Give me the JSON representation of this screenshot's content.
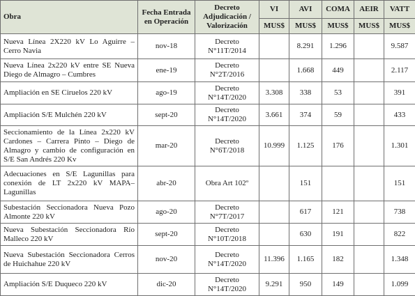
{
  "header": {
    "columns": [
      "Obra",
      "Fecha Entrada en Operación",
      "Decreto Adjudicación / Valorización",
      "VI",
      "AVI",
      "COMA",
      "AEIR",
      "VATT"
    ],
    "units": [
      "MUS$",
      "MUS$",
      "MUS$",
      "MUS$",
      "MUS$"
    ]
  },
  "table": {
    "rows": [
      [
        "Nueva Línea 2X220 kV Lo Aguirre – Cerro Navia",
        "nov-18",
        "Decreto N°11T/2014",
        null,
        "8.291",
        "1.296",
        null,
        "9.587"
      ],
      [
        "Nueva Línea 2x220 kV entre SE Nueva Diego de Almagro – Cumbres",
        "ene-19",
        "Decreto N°2T/2016",
        null,
        "1.668",
        "449",
        null,
        "2.117"
      ],
      [
        "Ampliación en SE Ciruelos 220 kV",
        "ago-19",
        "Decreto N°14T/2020",
        "3.308",
        "338",
        "53",
        null,
        "391"
      ],
      [
        "Ampliación S/E Mulchén 220 kV",
        "sept-20",
        "Decreto N°14T/2020",
        "3.661",
        "374",
        "59",
        null,
        "433"
      ],
      [
        "Seccionamiento de la Línea 2x220 kV Cardones – Carrera Pinto – Diego de Almagro y cambio de configuración en S/E San Andrés 220 Kv",
        "mar-20",
        "Decreto N°6T/2018",
        "10.999",
        "1.125",
        "176",
        null,
        "1.301"
      ],
      [
        "Adecuaciones en S/E Lagunillas para conexión de LT 2x220 kV MAPA–Lagunillas",
        "abr-20",
        "Obra Art 102º",
        null,
        "151",
        null,
        null,
        "151"
      ],
      [
        "Subestación Seccionadora Nueva Pozo Almonte 220 kV",
        "ago-20",
        "Decreto N°7T/2017",
        null,
        "617",
        "121",
        null,
        "738"
      ],
      [
        "Nueva Subestación Seccionadora Río Malleco 220 kV",
        "sept-20",
        "Decreto N°10T/2018",
        null,
        "630",
        "191",
        null,
        "822"
      ],
      [
        "Nueva Subestación Seccionadora Cerros de Huichahue 220 kV",
        "nov-20",
        "Decreto N°14T/2020",
        "11.396",
        "1.165",
        "182",
        null,
        "1.348"
      ],
      [
        "Ampliación S/E Duqueco 220 kV",
        "dic-20",
        "Decreto N°14T/2020",
        "9.291",
        "950",
        "149",
        null,
        "1.099"
      ]
    ]
  }
}
